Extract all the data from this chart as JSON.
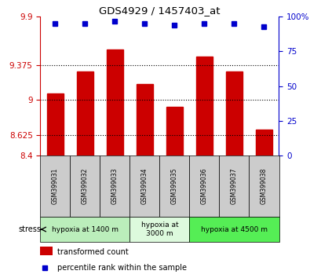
{
  "title": "GDS4929 / 1457403_at",
  "samples": [
    "GSM399031",
    "GSM399032",
    "GSM399033",
    "GSM399034",
    "GSM399035",
    "GSM399036",
    "GSM399037",
    "GSM399038"
  ],
  "bar_values": [
    9.07,
    9.31,
    9.55,
    9.17,
    8.93,
    9.47,
    9.31,
    8.68
  ],
  "dot_values": [
    95,
    95,
    97,
    95,
    94,
    95,
    95,
    93
  ],
  "ymin": 8.4,
  "ymax": 9.9,
  "yticks": [
    8.4,
    8.625,
    9.0,
    9.375,
    9.9
  ],
  "ytick_labels": [
    "8.4",
    "8.625",
    "9",
    "9.375",
    "9.9"
  ],
  "y2ticks": [
    0,
    25,
    50,
    75,
    100
  ],
  "y2tick_labels": [
    "0",
    "25",
    "50",
    "75",
    "100%"
  ],
  "dotted_lines": [
    8.625,
    9.0,
    9.375
  ],
  "bar_color": "#CC0000",
  "dot_color": "#0000CC",
  "bar_bottom": 8.4,
  "groups": [
    {
      "label": "hypoxia at 1400 m",
      "start": 0,
      "end": 3,
      "color": "#BBEEBB"
    },
    {
      "label": "hypoxia at\n3000 m",
      "start": 3,
      "end": 5,
      "color": "#DDFADD"
    },
    {
      "label": "hypoxia at 4500 m",
      "start": 5,
      "end": 8,
      "color": "#55EE55"
    }
  ],
  "stress_label": "stress",
  "legend_bar_label": "transformed count",
  "legend_dot_label": "percentile rank within the sample",
  "tick_color_left": "#CC0000",
  "tick_color_right": "#0000CC"
}
